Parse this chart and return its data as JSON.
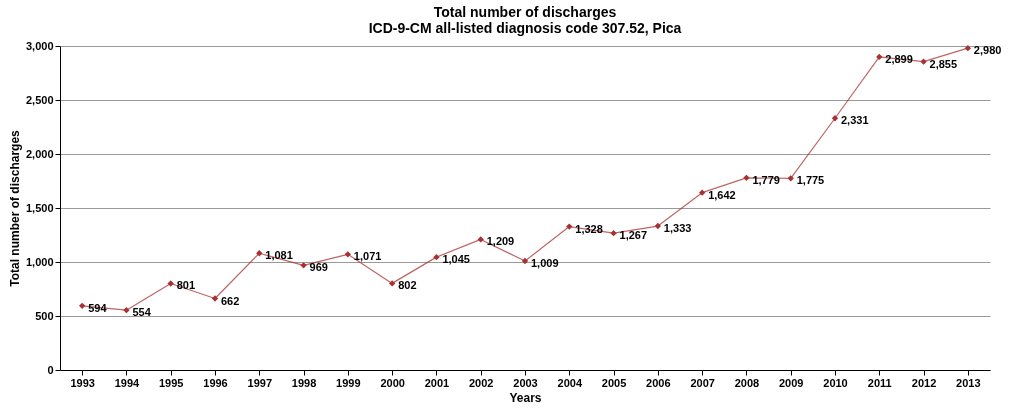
{
  "chart_data": {
    "type": "line",
    "title": "Total number of discharges",
    "subtitle": "ICD-9-CM all-listed diagnosis code 307.52, Pica",
    "xlabel": "Years",
    "ylabel": "Total number of discharges",
    "categories": [
      "1993",
      "1994",
      "1995",
      "1996",
      "1997",
      "1998",
      "1999",
      "2000",
      "2001",
      "2002",
      "2003",
      "2004",
      "2005",
      "2006",
      "2007",
      "2008",
      "2009",
      "2010",
      "2011",
      "2012",
      "2013"
    ],
    "series": [
      {
        "color": "#a83232",
        "values": [
          594,
          554,
          801,
          662,
          1081,
          969,
          1071,
          802,
          1045,
          1209,
          1009,
          1328,
          1267,
          1333,
          1642,
          1779,
          1775,
          2331,
          2899,
          2855,
          2980
        ],
        "value_labels": [
          "594",
          "554",
          "801",
          "662",
          "1,081",
          "969",
          "1,071",
          "802",
          "1,045",
          "1,209",
          "1,009",
          "1,328",
          "1,267",
          "1,333",
          "1,642",
          "1,779",
          "1,775",
          "2,331",
          "2,899",
          "2,855",
          "2,980"
        ]
      }
    ],
    "ylim": [
      0,
      3000
    ],
    "yticks": [
      0,
      {
        "value": 500,
        "label": "500"
      },
      {
        "value": 1000,
        "label": "1,000"
      },
      {
        "value": 1500,
        "label": "1,500"
      },
      {
        "value": 2000,
        "label": "2,000"
      },
      {
        "value": 2500,
        "label": "2,500"
      },
      {
        "value": 3000,
        "label": "3,000"
      }
    ],
    "grid": "y",
    "marker": "diamond",
    "line_style": "solid"
  }
}
